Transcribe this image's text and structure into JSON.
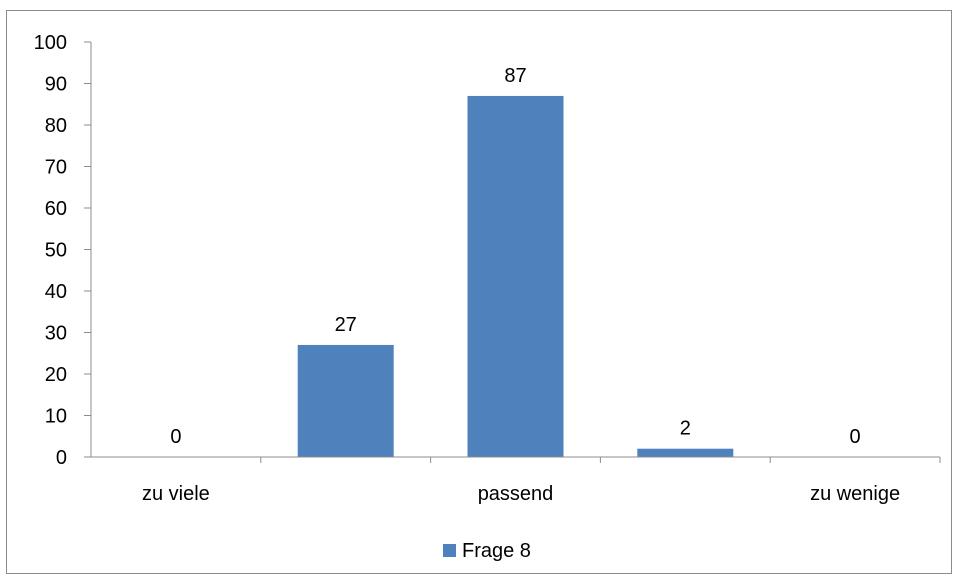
{
  "chart_data": {
    "type": "bar",
    "categories": [
      "zu viele",
      "",
      "passend",
      "",
      "zu wenige"
    ],
    "series": [
      {
        "name": "Frage 8",
        "values": [
          0,
          27,
          87,
          2,
          0
        ],
        "color": "#4f81bd"
      }
    ],
    "data_labels": [
      "0",
      "27",
      "87",
      "2",
      "0"
    ],
    "ylim": [
      0,
      100
    ],
    "yticks": [
      "0",
      "10",
      "20",
      "30",
      "40",
      "50",
      "60",
      "70",
      "80",
      "90",
      "100"
    ],
    "grid": false,
    "legend": {
      "position": "bottom",
      "label": "Frage 8"
    },
    "title": "",
    "xlabel": "",
    "ylabel": ""
  }
}
